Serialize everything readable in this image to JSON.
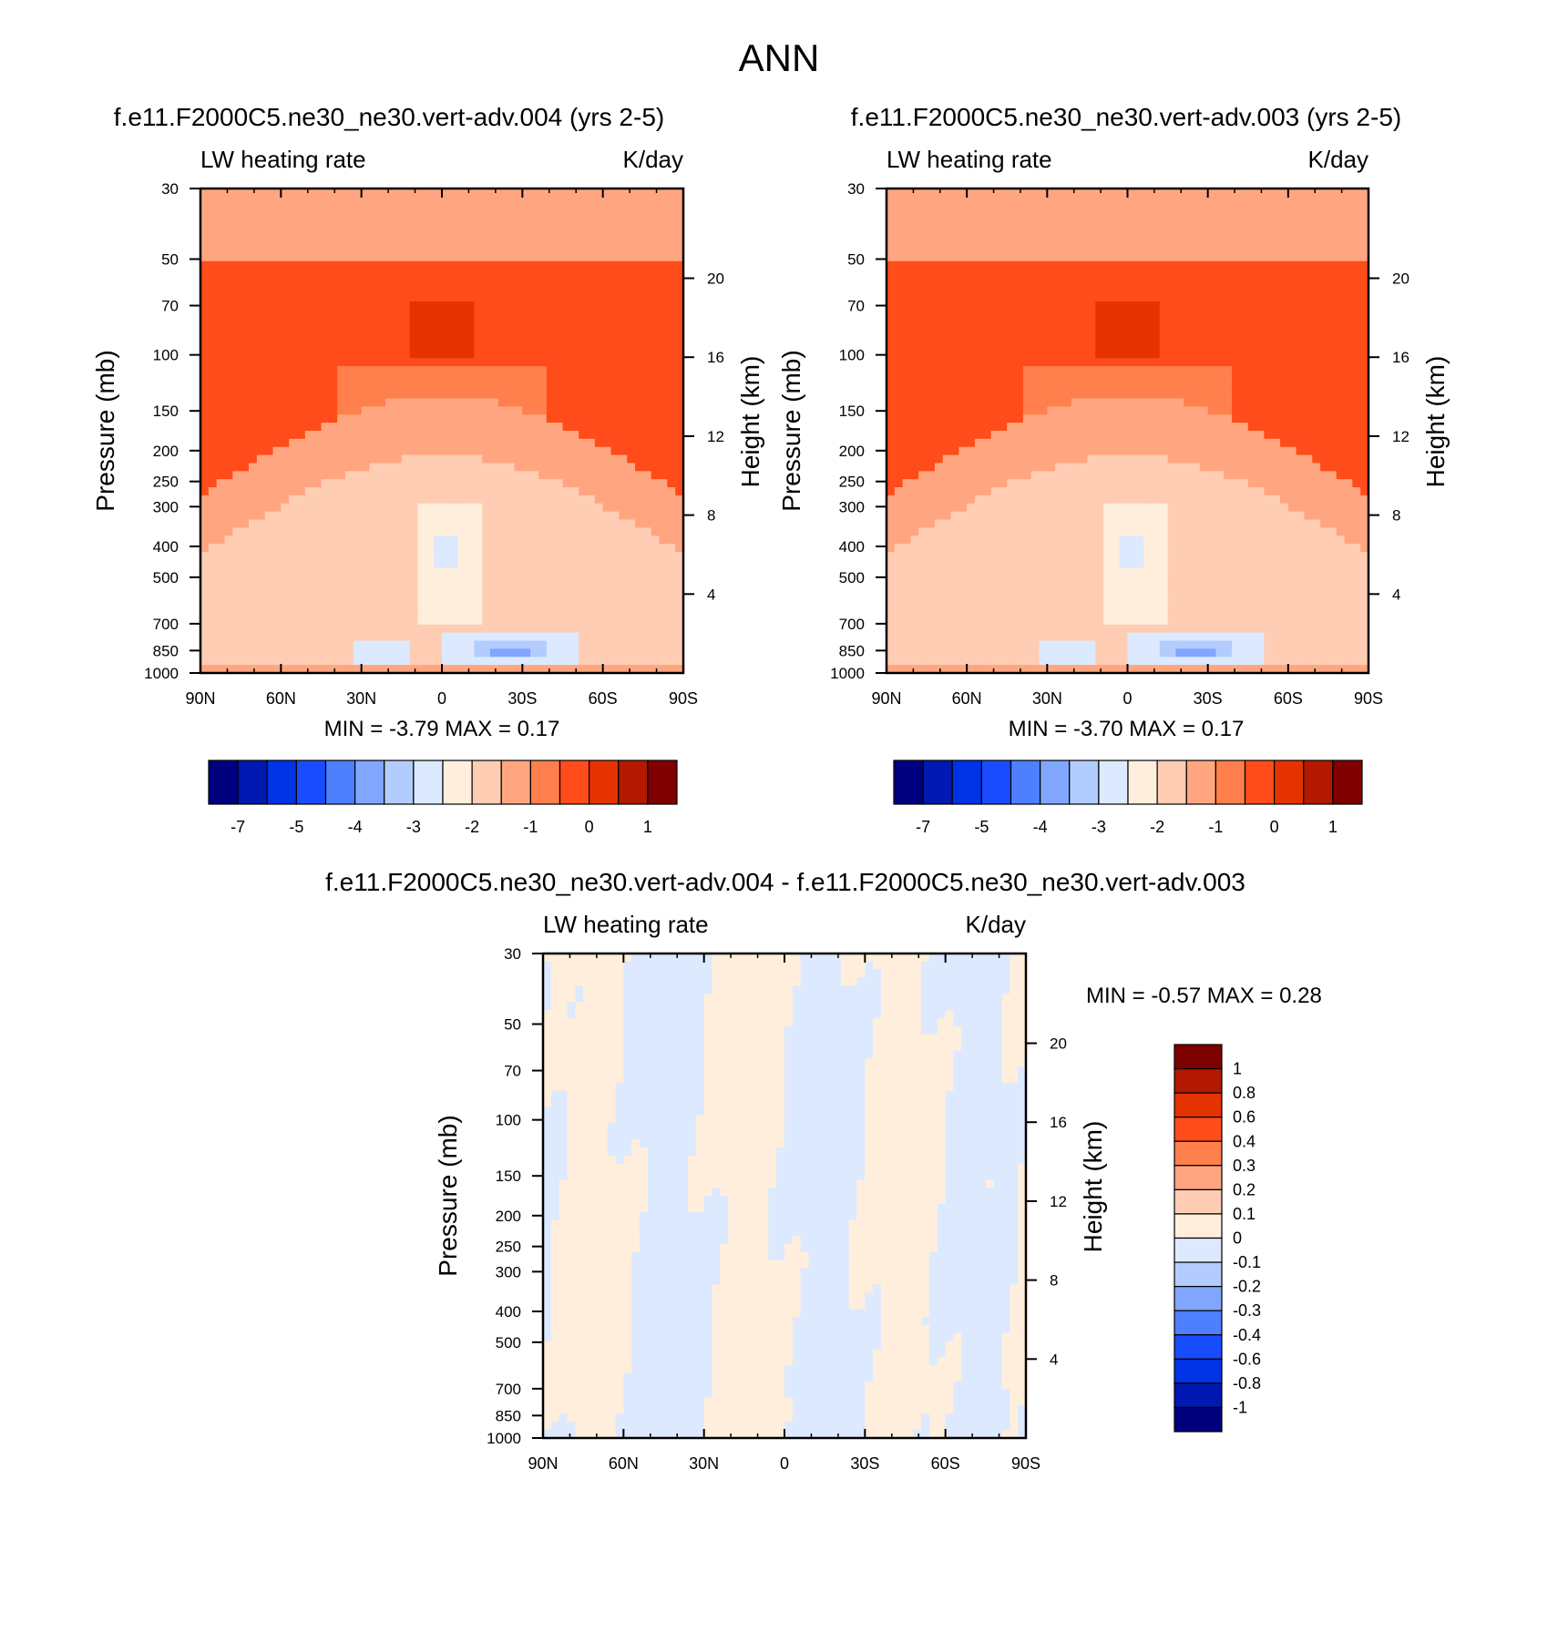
{
  "figure": {
    "title": "ANN",
    "colors": {
      "absolute": [
        "#00007f",
        "#0019b2",
        "#0033e5",
        "#1a4cff",
        "#4d7fff",
        "#80a6ff",
        "#b3ccff",
        "#dce9ff",
        "#ffeedc",
        "#ffcdb3",
        "#ffa680",
        "#ff7f4d",
        "#ff4c1a",
        "#e53300",
        "#b21900",
        "#7f0000"
      ],
      "diff": [
        "#00007f",
        "#0019b2",
        "#0033e5",
        "#1a4cff",
        "#4d7fff",
        "#80a6ff",
        "#b3ccff",
        "#dce9ff",
        "#ffeedc",
        "#ffcdb3",
        "#ffa680",
        "#ff7f4d",
        "#ff4c1a",
        "#e53300",
        "#b21900",
        "#7f0000"
      ]
    }
  },
  "chart_data": [
    {
      "type": "heatmap",
      "title": "f.e11.F2000C5.ne30_ne30.vert-adv.004 (yrs 2-5)",
      "left_label": "LW heating rate",
      "right_label": "K/day",
      "ylabel": "Pressure (mb)",
      "y2label": "Height (km)",
      "x_ticks": [
        "90N",
        "60N",
        "30N",
        "0",
        "30S",
        "60S",
        "90S"
      ],
      "y_ticks": [
        "30",
        "50",
        "70",
        "100",
        "150",
        "200",
        "250",
        "300",
        "400",
        "500",
        "700",
        "850",
        "1000"
      ],
      "y2_ticks": [
        "20",
        "16",
        "12",
        "8",
        "4"
      ],
      "min": "-3.79",
      "max": "0.17",
      "stats_text": "MIN =  -3.79  MAX =   0.17",
      "colorbar_labels": [
        "-7",
        "-5",
        "-4",
        "-3",
        "-2",
        "-1",
        "0",
        "1"
      ],
      "grid": false
    },
    {
      "type": "heatmap",
      "title": "f.e11.F2000C5.ne30_ne30.vert-adv.003 (yrs 2-5)",
      "left_label": "LW heating rate",
      "right_label": "K/day",
      "ylabel": "Pressure (mb)",
      "y2label": "Height (km)",
      "x_ticks": [
        "90N",
        "60N",
        "30N",
        "0",
        "30S",
        "60S",
        "90S"
      ],
      "y_ticks": [
        "30",
        "50",
        "70",
        "100",
        "150",
        "200",
        "250",
        "300",
        "400",
        "500",
        "700",
        "850",
        "1000"
      ],
      "y2_ticks": [
        "20",
        "16",
        "12",
        "8",
        "4"
      ],
      "min": "-3.70",
      "max": "0.17",
      "stats_text": "MIN =  -3.70  MAX =   0.17",
      "colorbar_labels": [
        "-7",
        "-5",
        "-4",
        "-3",
        "-2",
        "-1",
        "0",
        "1"
      ],
      "grid": false
    },
    {
      "type": "heatmap",
      "title": "f.e11.F2000C5.ne30_ne30.vert-adv.004 - f.e11.F2000C5.ne30_ne30.vert-adv.003",
      "left_label": "LW heating rate",
      "right_label": "K/day",
      "ylabel": "Pressure (mb)",
      "y2label": "Height (km)",
      "x_ticks": [
        "90N",
        "60N",
        "30N",
        "0",
        "30S",
        "60S",
        "90S"
      ],
      "y_ticks": [
        "30",
        "50",
        "70",
        "100",
        "150",
        "200",
        "250",
        "300",
        "400",
        "500",
        "700",
        "850",
        "1000"
      ],
      "y2_ticks": [
        "20",
        "16",
        "12",
        "8",
        "4"
      ],
      "min": "-0.57",
      "max": "0.28",
      "stats_text": "MIN =  -0.57  MAX =   0.28",
      "colorbar_labels": [
        "1",
        "0.8",
        "0.6",
        "0.4",
        "0.3",
        "0.2",
        "0.1",
        "0",
        "-0.1",
        "-0.2",
        "-0.3",
        "-0.4",
        "-0.6",
        "-0.8",
        "-1"
      ],
      "grid": false
    }
  ]
}
